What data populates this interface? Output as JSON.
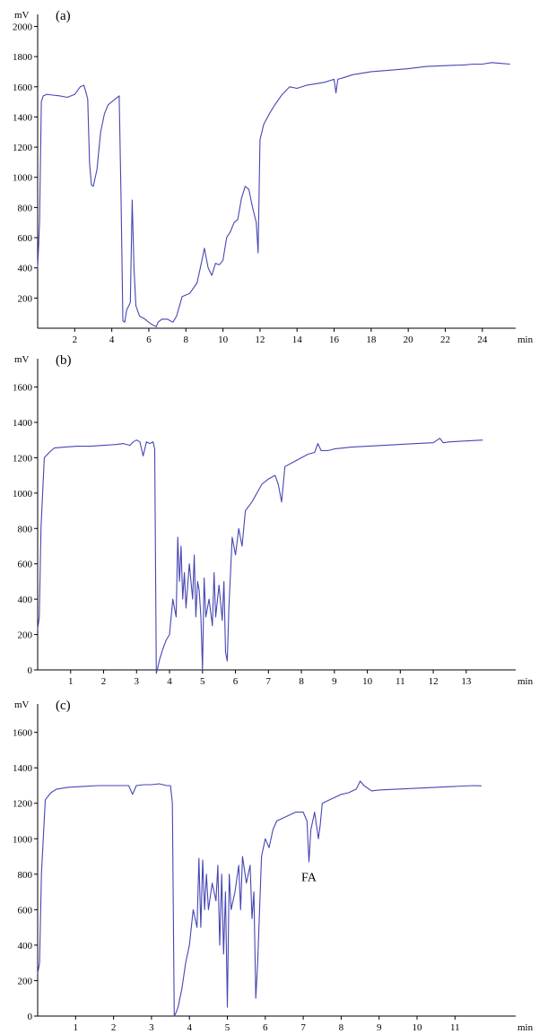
{
  "chart_data": [
    {
      "type": "line",
      "panel_label": "(a)",
      "ylabel": "mV",
      "xlabel": "min",
      "xlim": [
        0,
        25.8
      ],
      "ylim": [
        0,
        2080
      ],
      "xticks": [
        2,
        4,
        6,
        8,
        10,
        12,
        14,
        16,
        18,
        20,
        22,
        24
      ],
      "yticks": [
        200,
        400,
        600,
        800,
        1000,
        1200,
        1400,
        1600,
        1800,
        2000
      ],
      "series": [
        {
          "color": "#4646b4",
          "x": [
            0.0,
            0.1,
            0.2,
            0.3,
            0.5,
            0.8,
            1.2,
            1.6,
            2.0,
            2.3,
            2.5,
            2.7,
            2.8,
            2.9,
            3.0,
            3.2,
            3.4,
            3.6,
            3.8,
            4.0,
            4.2,
            4.4,
            4.5,
            4.6,
            4.7,
            4.8,
            5.0,
            5.1,
            5.2,
            5.3,
            5.5,
            5.8,
            6.1,
            6.4,
            6.5,
            6.7,
            7.0,
            7.3,
            7.5,
            7.8,
            8.2,
            8.6,
            8.9,
            9.0,
            9.2,
            9.4,
            9.6,
            9.8,
            10.0,
            10.2,
            10.4,
            10.6,
            10.8,
            11.0,
            11.2,
            11.4,
            11.6,
            11.8,
            11.9,
            12.0,
            12.1,
            12.2,
            12.5,
            12.8,
            13.2,
            13.6,
            14.0,
            14.5,
            15.0,
            15.5,
            16.0,
            16.1,
            16.2,
            16.5,
            17.0,
            18.0,
            19.0,
            20.0,
            21.0,
            22.0,
            23.0,
            23.5,
            24.0,
            24.5,
            25.0,
            25.5
          ],
          "values": [
            400,
            700,
            1500,
            1540,
            1550,
            1545,
            1540,
            1530,
            1550,
            1600,
            1610,
            1520,
            1100,
            950,
            940,
            1050,
            1300,
            1420,
            1480,
            1500,
            1520,
            1540,
            850,
            50,
            40,
            120,
            170,
            850,
            400,
            150,
            80,
            60,
            30,
            10,
            40,
            60,
            60,
            40,
            80,
            210,
            230,
            300,
            470,
            530,
            400,
            350,
            430,
            420,
            450,
            600,
            640,
            700,
            720,
            860,
            940,
            920,
            800,
            700,
            500,
            1250,
            1300,
            1350,
            1420,
            1480,
            1550,
            1600,
            1590,
            1610,
            1620,
            1630,
            1650,
            1560,
            1650,
            1660,
            1680,
            1700,
            1710,
            1720,
            1735,
            1740,
            1745,
            1750,
            1750,
            1760,
            1755,
            1750
          ]
        }
      ]
    },
    {
      "type": "line",
      "panel_label": "(b)",
      "ylabel": "mV",
      "xlabel": "min",
      "xlim": [
        0,
        14.5
      ],
      "ylim": [
        0,
        1760
      ],
      "xticks": [
        1,
        2,
        3,
        4,
        5,
        6,
        7,
        8,
        9,
        10,
        11,
        12,
        13
      ],
      "yticks": [
        0,
        200,
        400,
        600,
        800,
        1000,
        1200,
        1400,
        1600
      ],
      "series": [
        {
          "color": "#4646b4",
          "x": [
            0.0,
            0.05,
            0.1,
            0.2,
            0.35,
            0.5,
            0.8,
            1.2,
            1.6,
            2.0,
            2.4,
            2.6,
            2.8,
            2.9,
            3.0,
            3.1,
            3.2,
            3.3,
            3.4,
            3.5,
            3.55,
            3.6,
            3.65,
            3.7,
            3.8,
            3.9,
            4.0,
            4.1,
            4.2,
            4.25,
            4.3,
            4.35,
            4.4,
            4.45,
            4.5,
            4.6,
            4.7,
            4.75,
            4.8,
            4.85,
            4.9,
            4.95,
            5.0,
            5.05,
            5.1,
            5.2,
            5.3,
            5.35,
            5.4,
            5.5,
            5.6,
            5.65,
            5.7,
            5.75,
            5.8,
            5.9,
            6.0,
            6.1,
            6.2,
            6.3,
            6.5,
            6.8,
            7.0,
            7.2,
            7.3,
            7.4,
            7.5,
            7.8,
            8.0,
            8.2,
            8.4,
            8.5,
            8.6,
            8.8,
            9.0,
            9.5,
            10.0,
            10.5,
            11.0,
            11.5,
            12.0,
            12.2,
            12.3,
            12.5,
            13.0,
            13.5
          ],
          "values": [
            230,
            300,
            800,
            1200,
            1230,
            1255,
            1260,
            1265,
            1265,
            1270,
            1275,
            1280,
            1270,
            1290,
            1300,
            1290,
            1210,
            1290,
            1280,
            1290,
            1250,
            -20,
            20,
            60,
            120,
            170,
            200,
            400,
            300,
            750,
            500,
            700,
            400,
            550,
            350,
            600,
            400,
            650,
            300,
            500,
            450,
            300,
            0,
            520,
            300,
            400,
            250,
            550,
            300,
            480,
            280,
            500,
            100,
            50,
            350,
            750,
            650,
            800,
            700,
            900,
            950,
            1050,
            1080,
            1100,
            1050,
            950,
            1150,
            1180,
            1200,
            1220,
            1230,
            1280,
            1240,
            1240,
            1250,
            1260,
            1265,
            1270,
            1275,
            1280,
            1285,
            1310,
            1285,
            1290,
            1295,
            1300
          ]
        }
      ]
    },
    {
      "type": "line",
      "panel_label": "(c)",
      "ylabel": "mV",
      "xlabel": "min",
      "xlim": [
        0,
        12.6
      ],
      "ylim": [
        0,
        1760
      ],
      "xticks": [
        1,
        2,
        3,
        4,
        5,
        6,
        7,
        8,
        9,
        10,
        11
      ],
      "yticks": [
        0,
        200,
        400,
        600,
        800,
        1000,
        1200,
        1400,
        1600
      ],
      "annotations": [
        {
          "text": "FA",
          "x": 7.15,
          "y": 760
        }
      ],
      "series": [
        {
          "color": "#4646b4",
          "x": [
            0.0,
            0.05,
            0.1,
            0.2,
            0.35,
            0.5,
            0.8,
            1.2,
            1.6,
            2.0,
            2.4,
            2.5,
            2.6,
            2.8,
            3.0,
            3.2,
            3.4,
            3.5,
            3.55,
            3.6,
            3.65,
            3.7,
            3.8,
            3.9,
            4.0,
            4.1,
            4.2,
            4.25,
            4.3,
            4.35,
            4.4,
            4.45,
            4.5,
            4.6,
            4.7,
            4.75,
            4.8,
            4.85,
            4.9,
            4.95,
            5.0,
            5.05,
            5.1,
            5.2,
            5.3,
            5.35,
            5.4,
            5.5,
            5.6,
            5.65,
            5.7,
            5.75,
            5.8,
            5.9,
            6.0,
            6.1,
            6.2,
            6.3,
            6.5,
            6.8,
            7.0,
            7.1,
            7.15,
            7.2,
            7.3,
            7.4,
            7.45,
            7.5,
            7.6,
            7.8,
            8.0,
            8.2,
            8.4,
            8.5,
            8.6,
            8.8,
            9.0,
            9.5,
            10.0,
            10.5,
            11.0,
            11.5,
            11.7
          ],
          "values": [
            240,
            300,
            800,
            1220,
            1260,
            1280,
            1290,
            1295,
            1300,
            1300,
            1300,
            1250,
            1300,
            1305,
            1305,
            1310,
            1300,
            1300,
            1200,
            0,
            20,
            50,
            150,
            300,
            400,
            600,
            500,
            890,
            500,
            880,
            600,
            800,
            600,
            750,
            650,
            850,
            400,
            800,
            350,
            700,
            50,
            800,
            600,
            700,
            850,
            600,
            900,
            750,
            850,
            550,
            700,
            100,
            300,
            900,
            1000,
            950,
            1050,
            1100,
            1120,
            1150,
            1150,
            1100,
            870,
            1050,
            1150,
            1000,
            1080,
            1200,
            1210,
            1230,
            1250,
            1260,
            1280,
            1325,
            1300,
            1270,
            1275,
            1280,
            1285,
            1290,
            1295,
            1300,
            1298
          ]
        }
      ]
    }
  ]
}
